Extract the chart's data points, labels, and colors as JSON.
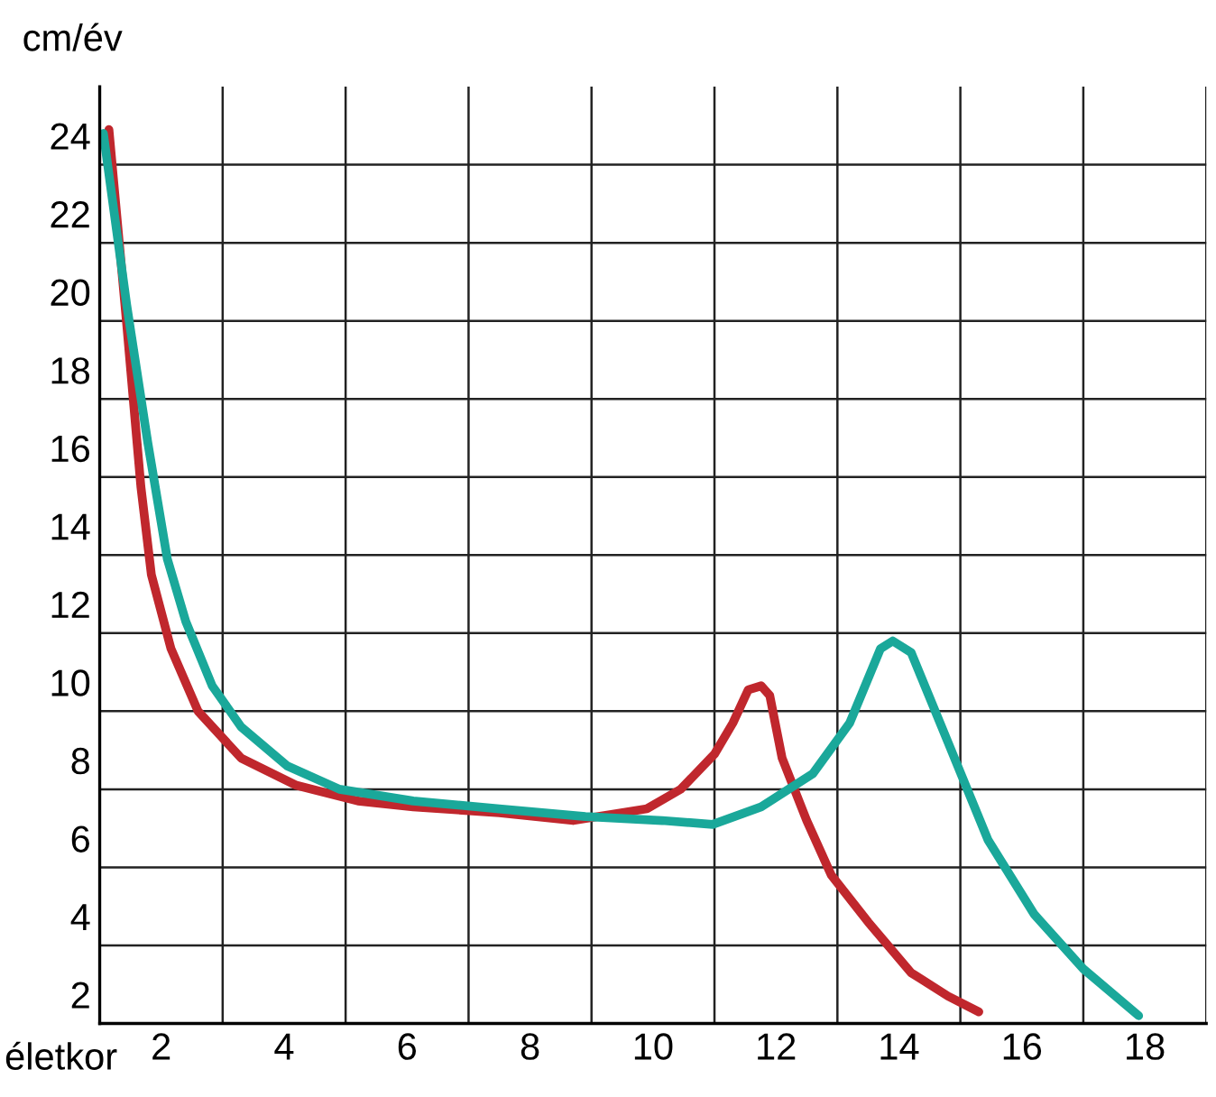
{
  "chart_data": {
    "type": "line",
    "xlabel": "életkor",
    "ylabel": "cm/év",
    "xlim": [
      1,
      19
    ],
    "ylim": [
      2,
      26
    ],
    "xticks": [
      2,
      4,
      6,
      8,
      10,
      12,
      14,
      16,
      18
    ],
    "yticks": [
      2,
      4,
      6,
      8,
      10,
      12,
      14,
      16,
      18,
      20,
      22,
      24
    ],
    "grid": true,
    "marker": "none",
    "line_style": "solid",
    "series": [
      {
        "color": "#c0272d",
        "x": [
          1.15,
          1.44,
          1.67,
          1.84,
          2.16,
          2.6,
          3.3,
          4.2,
          5.2,
          6.1,
          7.5,
          8.7,
          9.9,
          10.45,
          11.0,
          11.3,
          11.55,
          11.76,
          11.9,
          12.1,
          12.5,
          12.9,
          13.5,
          14.2,
          14.8,
          15.3
        ],
        "values": [
          24.9,
          19.9,
          15.75,
          13.5,
          11.6,
          10.0,
          8.8,
          8.1,
          7.7,
          7.55,
          7.4,
          7.2,
          7.5,
          8.0,
          8.9,
          9.7,
          10.55,
          10.65,
          10.4,
          8.8,
          7.2,
          5.8,
          4.6,
          3.3,
          2.7,
          2.3
        ]
      },
      {
        "color": "#1aa89a",
        "x": [
          1.06,
          1.44,
          1.78,
          2.1,
          2.4,
          2.83,
          3.3,
          4.05,
          4.9,
          6.1,
          7.5,
          8.9,
          10.15,
          10.97,
          11.76,
          12.6,
          13.2,
          13.7,
          13.9,
          14.2,
          14.8,
          15.45,
          16.2,
          17.0,
          17.9
        ],
        "values": [
          24.8,
          20.4,
          16.9,
          13.9,
          12.3,
          10.65,
          9.6,
          8.6,
          8.0,
          7.7,
          7.5,
          7.3,
          7.2,
          7.1,
          7.55,
          8.4,
          9.7,
          11.6,
          11.8,
          11.5,
          9.2,
          6.7,
          4.8,
          3.4,
          2.2
        ]
      }
    ]
  }
}
